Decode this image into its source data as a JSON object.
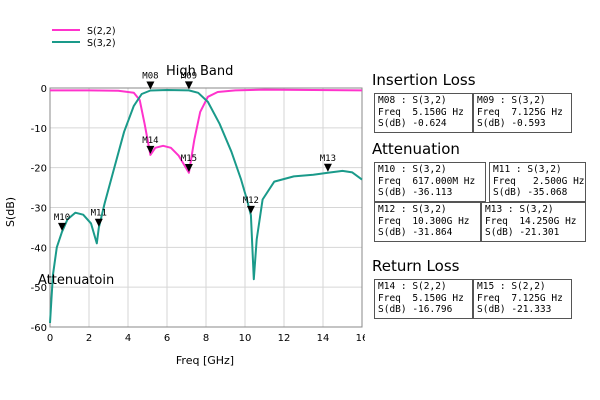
{
  "chart_data": {
    "type": "line",
    "xlabel": "Freq [GHz]",
    "ylabel": "S(dB)",
    "xlim": [
      0,
      16
    ],
    "ylim": [
      -60,
      0
    ],
    "xticks": [
      "0",
      "2",
      "4",
      "6",
      "8",
      "10",
      "12",
      "14",
      "16"
    ],
    "yticks": [
      "0",
      "-10",
      "-20",
      "-30",
      "-40",
      "-50",
      "-60"
    ],
    "grid": true,
    "legend_position": "top-left",
    "series": [
      {
        "name": "S(2,2)",
        "color": "#ff33cc",
        "points": [
          [
            0,
            -0.6
          ],
          [
            2,
            -0.6
          ],
          [
            3.5,
            -0.7
          ],
          [
            4.3,
            -1.2
          ],
          [
            4.6,
            -3
          ],
          [
            4.85,
            -9
          ],
          [
            5.15,
            -16.8
          ],
          [
            5.4,
            -15
          ],
          [
            5.8,
            -14.5
          ],
          [
            6.2,
            -15
          ],
          [
            6.6,
            -17
          ],
          [
            7.125,
            -21.3
          ],
          [
            7.4,
            -13
          ],
          [
            7.7,
            -6
          ],
          [
            8.1,
            -2.2
          ],
          [
            8.6,
            -1
          ],
          [
            9.5,
            -0.6
          ],
          [
            11,
            -0.4
          ],
          [
            16,
            -0.6
          ]
        ]
      },
      {
        "name": "S(3,2)",
        "color": "#1a9a8a",
        "points": [
          [
            0,
            -59
          ],
          [
            0.15,
            -47
          ],
          [
            0.35,
            -40
          ],
          [
            0.617,
            -36.1
          ],
          [
            0.9,
            -33
          ],
          [
            1.3,
            -31.3
          ],
          [
            1.7,
            -31.8
          ],
          [
            2.1,
            -34
          ],
          [
            2.4,
            -39
          ],
          [
            2.5,
            -35.1
          ],
          [
            2.8,
            -29
          ],
          [
            3.3,
            -20
          ],
          [
            3.8,
            -11
          ],
          [
            4.3,
            -4.5
          ],
          [
            4.7,
            -1.5
          ],
          [
            5.15,
            -0.62
          ],
          [
            6,
            -0.5
          ],
          [
            7.125,
            -0.59
          ],
          [
            7.6,
            -1.2
          ],
          [
            8.1,
            -3.5
          ],
          [
            8.7,
            -9
          ],
          [
            9.3,
            -16
          ],
          [
            9.8,
            -23
          ],
          [
            10.1,
            -28
          ],
          [
            10.3,
            -31.9
          ],
          [
            10.45,
            -48
          ],
          [
            10.6,
            -38
          ],
          [
            10.9,
            -28
          ],
          [
            11.5,
            -23.5
          ],
          [
            12.5,
            -22.2
          ],
          [
            13.5,
            -21.8
          ],
          [
            14.25,
            -21.3
          ],
          [
            15,
            -20.8
          ],
          [
            15.5,
            -21.2
          ],
          [
            16,
            -23
          ]
        ]
      }
    ],
    "markers": [
      {
        "label": "M08",
        "x": 5.15,
        "y": -0.624
      },
      {
        "label": "M09",
        "x": 7.125,
        "y": -0.593
      },
      {
        "label": "M10",
        "x": 0.617,
        "y": -36.113
      },
      {
        "label": "M11",
        "x": 2.5,
        "y": -35.068
      },
      {
        "label": "M12",
        "x": 10.3,
        "y": -31.864
      },
      {
        "label": "M13",
        "x": 14.25,
        "y": -21.301
      },
      {
        "label": "M14",
        "x": 5.15,
        "y": -16.796
      },
      {
        "label": "M15",
        "x": 7.125,
        "y": -21.333
      }
    ],
    "annotations": [
      "High Band",
      "Attenuatoin"
    ]
  },
  "sections": {
    "insertion_loss": "Insertion Loss",
    "attenuation": "Attenuation",
    "return_loss": "Return Loss"
  },
  "marker_boxes": {
    "m08": {
      "l1": "M08 : S(3,2)",
      "l2": "Freq  5.150G Hz",
      "l3": "S(dB) -0.624"
    },
    "m09": {
      "l1": "M09 : S(3,2)",
      "l2": "Freq  7.125G Hz",
      "l3": "S(dB) -0.593"
    },
    "m10": {
      "l1": "M10 : S(3,2)",
      "l2": "Freq  617.000M Hz",
      "l3": "S(dB) -36.113"
    },
    "m11": {
      "l1": "M11 : S(3,2)",
      "l2": "Freq   2.500G Hz",
      "l3": "S(dB) -35.068"
    },
    "m12": {
      "l1": "M12 : S(3,2)",
      "l2": "Freq  10.300G Hz",
      "l3": "S(dB) -31.864"
    },
    "m13": {
      "l1": "M13 : S(3,2)",
      "l2": "Freq  14.250G Hz",
      "l3": "S(dB) -21.301"
    },
    "m14": {
      "l1": "M14 : S(2,2)",
      "l2": "Freq  5.150G Hz",
      "l3": "S(dB) -16.796"
    },
    "m15": {
      "l1": "M15 : S(2,2)",
      "l2": "Freq  7.125G Hz",
      "l3": "S(dB) -21.333"
    }
  }
}
